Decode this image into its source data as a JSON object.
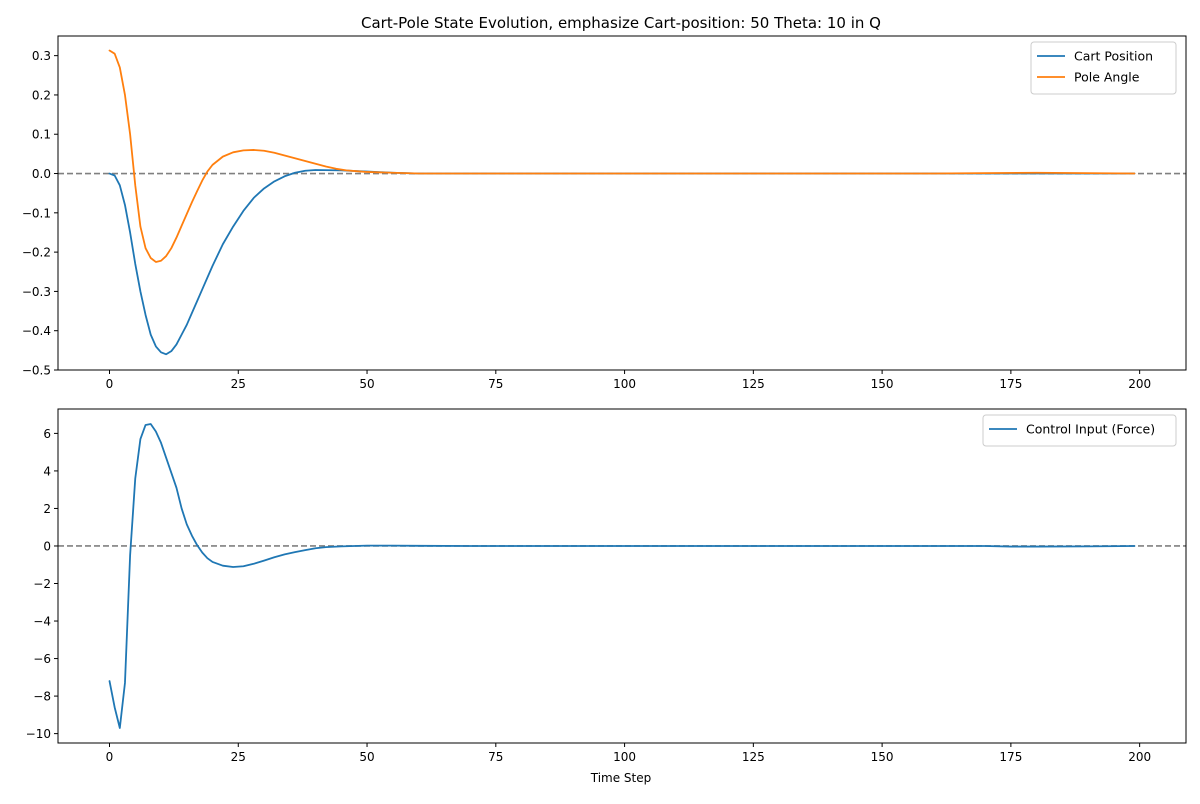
{
  "chart_data": [
    {
      "type": "line",
      "title": "Cart-Pole State Evolution, emphasize Cart-position: 50  Theta: 10 in Q",
      "xlabel": "",
      "ylabel": "",
      "xlim": [
        -10,
        209
      ],
      "ylim": [
        -0.5,
        0.35
      ],
      "xticks": [
        0,
        25,
        50,
        75,
        100,
        125,
        150,
        175,
        200
      ],
      "yticks": [
        -0.5,
        -0.4,
        -0.3,
        -0.2,
        -0.1,
        0.0,
        0.1,
        0.2,
        0.3
      ],
      "ytick_labels": [
        "−0.5",
        "−0.4",
        "−0.3",
        "−0.2",
        "−0.1",
        "0.0",
        "0.1",
        "0.2",
        "0.3"
      ],
      "grid": false,
      "legend_position": "top-right",
      "reference_line": {
        "y": 0,
        "style": "dashed",
        "color": "#808080"
      },
      "series": [
        {
          "name": "Cart Position",
          "color": "#1f77b4",
          "x": [
            0,
            1,
            2,
            3,
            4,
            5,
            6,
            7,
            8,
            9,
            10,
            11,
            12,
            13,
            14,
            15,
            16,
            17,
            18,
            19,
            20,
            22,
            24,
            26,
            28,
            30,
            32,
            34,
            36,
            38,
            40,
            45,
            50,
            55,
            60,
            70,
            80,
            100,
            120,
            140,
            160,
            180,
            199
          ],
          "values": [
            0.0,
            -0.005,
            -0.03,
            -0.08,
            -0.15,
            -0.23,
            -0.3,
            -0.36,
            -0.41,
            -0.44,
            -0.455,
            -0.46,
            -0.452,
            -0.435,
            -0.41,
            -0.385,
            -0.355,
            -0.325,
            -0.295,
            -0.265,
            -0.235,
            -0.18,
            -0.135,
            -0.095,
            -0.062,
            -0.038,
            -0.02,
            -0.007,
            0.002,
            0.007,
            0.009,
            0.008,
            0.005,
            0.002,
            0.0,
            0.0,
            0.0,
            0.0,
            0.0,
            0.0,
            0.0,
            0.0,
            0.0
          ]
        },
        {
          "name": "Pole Angle",
          "color": "#ff7f0e",
          "x": [
            0,
            1,
            2,
            3,
            4,
            5,
            6,
            7,
            8,
            9,
            10,
            11,
            12,
            13,
            14,
            15,
            16,
            17,
            18,
            19,
            20,
            22,
            24,
            26,
            28,
            30,
            32,
            34,
            36,
            38,
            40,
            42,
            44,
            46,
            48,
            50,
            55,
            60,
            70,
            80,
            100,
            120,
            140,
            160,
            180,
            199
          ],
          "values": [
            0.313,
            0.305,
            0.27,
            0.2,
            0.1,
            -0.03,
            -0.135,
            -0.19,
            -0.215,
            -0.225,
            -0.222,
            -0.21,
            -0.19,
            -0.163,
            -0.133,
            -0.103,
            -0.073,
            -0.045,
            -0.018,
            0.005,
            0.022,
            0.043,
            0.054,
            0.059,
            0.06,
            0.058,
            0.053,
            0.046,
            0.039,
            0.032,
            0.025,
            0.018,
            0.012,
            0.008,
            0.006,
            0.004,
            0.002,
            0.0,
            0.0,
            0.0,
            0.0,
            0.0,
            0.0,
            0.0,
            0.002,
            0.0
          ]
        }
      ]
    },
    {
      "type": "line",
      "title": "",
      "xlabel": "Time Step",
      "ylabel": "",
      "xlim": [
        -10,
        209
      ],
      "ylim": [
        -10.5,
        7.3
      ],
      "xticks": [
        0,
        25,
        50,
        75,
        100,
        125,
        150,
        175,
        200
      ],
      "yticks": [
        -10,
        -8,
        -6,
        -4,
        -2,
        0,
        2,
        4,
        6
      ],
      "ytick_labels": [
        "−10",
        "−8",
        "−6",
        "−4",
        "−2",
        "0",
        "2",
        "4",
        "6"
      ],
      "grid": false,
      "legend_position": "top-right",
      "reference_line": {
        "y": 0,
        "style": "dashed",
        "color": "#808080"
      },
      "series": [
        {
          "name": "Control Input (Force)",
          "color": "#1f77b4",
          "x": [
            0,
            1,
            2,
            3,
            4,
            5,
            6,
            7,
            8,
            9,
            10,
            11,
            12,
            13,
            14,
            15,
            16,
            17,
            18,
            19,
            20,
            22,
            24,
            26,
            28,
            30,
            32,
            34,
            36,
            38,
            40,
            42,
            45,
            50,
            55,
            60,
            70,
            80,
            100,
            120,
            140,
            160,
            170,
            175,
            180,
            190,
            199
          ],
          "values": [
            -7.2,
            -8.6,
            -9.7,
            -7.3,
            -0.5,
            3.6,
            5.7,
            6.45,
            6.5,
            6.1,
            5.5,
            4.7,
            3.9,
            3.1,
            2.0,
            1.15,
            0.55,
            0.05,
            -0.35,
            -0.65,
            -0.85,
            -1.05,
            -1.12,
            -1.08,
            -0.95,
            -0.78,
            -0.6,
            -0.45,
            -0.33,
            -0.22,
            -0.12,
            -0.06,
            -0.02,
            0.02,
            0.02,
            0.01,
            0.0,
            0.0,
            0.0,
            0.0,
            0.0,
            0.0,
            0.0,
            -0.03,
            -0.03,
            -0.02,
            0.0
          ]
        }
      ]
    }
  ]
}
